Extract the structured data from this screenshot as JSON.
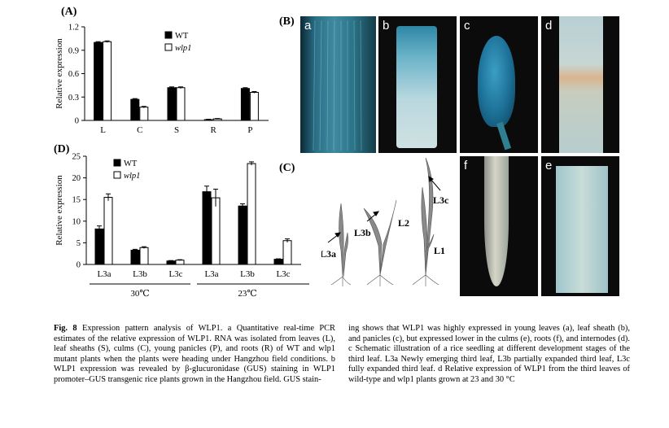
{
  "panels": {
    "A": "(A)",
    "B": "(B)",
    "C": "(C)",
    "D": "(D)"
  },
  "photos": [
    {
      "label": "a"
    },
    {
      "label": "b"
    },
    {
      "label": "c"
    },
    {
      "label": "d"
    },
    {
      "label": "f"
    },
    {
      "label": "e"
    }
  ],
  "seedling_labels": [
    "L3a",
    "L3b",
    "L2",
    "L3c",
    "L1"
  ],
  "chart_data": [
    {
      "type": "bar",
      "panel": "A",
      "ylabel": "Relative expression",
      "categories": [
        "L",
        "C",
        "S",
        "R",
        "P"
      ],
      "ylim": [
        0,
        1.2
      ],
      "yticks": [
        "0",
        "0.3",
        "0.6",
        "0.9",
        "1.2"
      ],
      "series": [
        {
          "name": "WT",
          "values": [
            1.0,
            0.27,
            0.42,
            0.01,
            0.41
          ],
          "errors": [
            0.01,
            0.01,
            0.01,
            0.005,
            0.01
          ]
        },
        {
          "name": "wlp1",
          "values": [
            1.01,
            0.17,
            0.42,
            0.02,
            0.36
          ],
          "errors": [
            0.01,
            0.01,
            0.01,
            0.005,
            0.01
          ]
        }
      ],
      "legend": "top-right"
    },
    {
      "type": "bar",
      "panel": "D",
      "ylabel": "Relative expression",
      "categories": [
        "L3a",
        "L3b",
        "L3c",
        "L3a",
        "L3b",
        "L3c"
      ],
      "groups": [
        "30℃",
        "23℃"
      ],
      "ylim": [
        0,
        25
      ],
      "yticks": [
        "0",
        "5",
        "10",
        "15",
        "20",
        "25"
      ],
      "series": [
        {
          "name": "WT",
          "values": [
            8.2,
            3.3,
            0.8,
            16.8,
            13.5,
            1.2
          ],
          "errors": [
            0.7,
            0.2,
            0.1,
            1.3,
            0.5,
            0.1
          ]
        },
        {
          "name": "wlp1",
          "values": [
            15.5,
            3.9,
            1.0,
            15.4,
            23.3,
            5.5
          ],
          "errors": [
            0.8,
            0.2,
            0.1,
            2.0,
            0.4,
            0.4
          ]
        }
      ],
      "legend": "top-left"
    }
  ],
  "caption": {
    "fig": "Fig. 8",
    "left": "Expression pattern analysis of WLP1. a Quantitative real-time PCR estimates of the relative expression of WLP1. RNA was isolated from leaves (L), leaf sheaths (S), culms (C), young panicles (P), and roots (R) of WT and wlp1 mutant plants when the plants were heading under Hangzhou field conditions. b WLP1 expression was revealed by β-glucuronidase (GUS) staining in WLP1 promoter–GUS transgenic rice plants grown in the Hangzhou field. GUS stain-",
    "right": "ing shows that WLP1 was highly expressed in young leaves (a), leaf sheath (b), and panicles (c), but expressed lower in the culms (e), roots (f), and internodes (d). c Schematic illustration of a rice seedling at different development stages of the third leaf. L3a Newly emerging third leaf, L3b partially expanded third leaf, L3c fully expanded third leaf. d Relative expression of WLP1 from the third leaves of wild-type and wlp1 plants grown at 23 and 30 °C"
  }
}
